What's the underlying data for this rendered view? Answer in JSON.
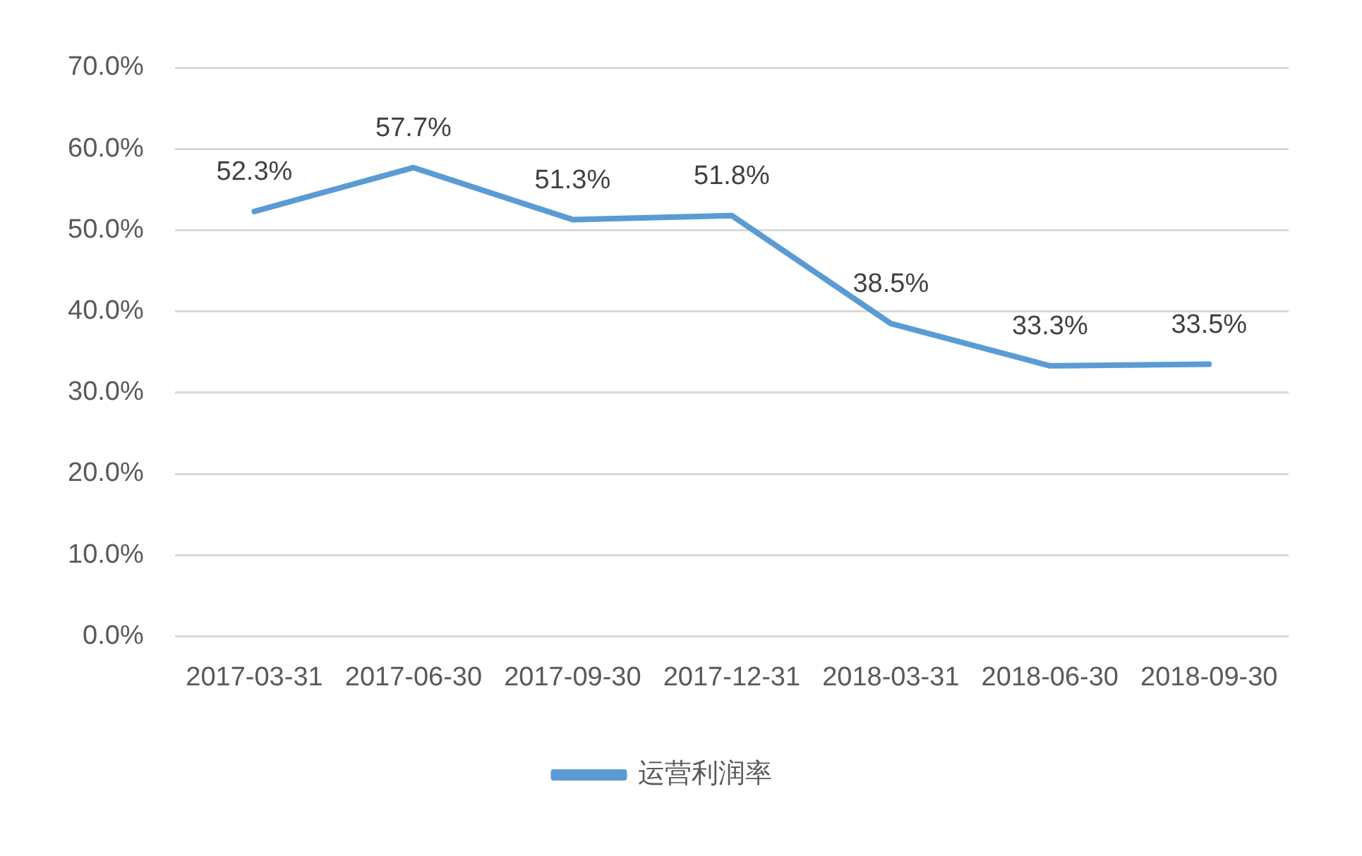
{
  "chart_data": {
    "type": "line",
    "categories": [
      "2017-03-31",
      "2017-06-30",
      "2017-09-30",
      "2017-12-31",
      "2018-03-31",
      "2018-06-30",
      "2018-09-30"
    ],
    "series": [
      {
        "name": "运营利润率",
        "color": "#5b9bd5",
        "values": [
          52.3,
          57.7,
          51.3,
          51.8,
          38.5,
          33.3,
          33.5
        ],
        "value_labels": [
          "52.3%",
          "57.7%",
          "51.3%",
          "51.8%",
          "38.5%",
          "33.3%",
          "33.5%"
        ]
      }
    ],
    "ylim": [
      0,
      70
    ],
    "yticks": [
      {
        "value": 0,
        "label": "0.0%"
      },
      {
        "value": 10,
        "label": "10.0%"
      },
      {
        "value": 20,
        "label": "20.0%"
      },
      {
        "value": 30,
        "label": "30.0%"
      },
      {
        "value": 40,
        "label": "40.0%"
      },
      {
        "value": 50,
        "label": "50.0%"
      },
      {
        "value": 60,
        "label": "60.0%"
      },
      {
        "value": 70,
        "label": "70.0%"
      }
    ],
    "grid": "y",
    "legend": "bottom",
    "marker": "none",
    "line_style": "solid"
  }
}
